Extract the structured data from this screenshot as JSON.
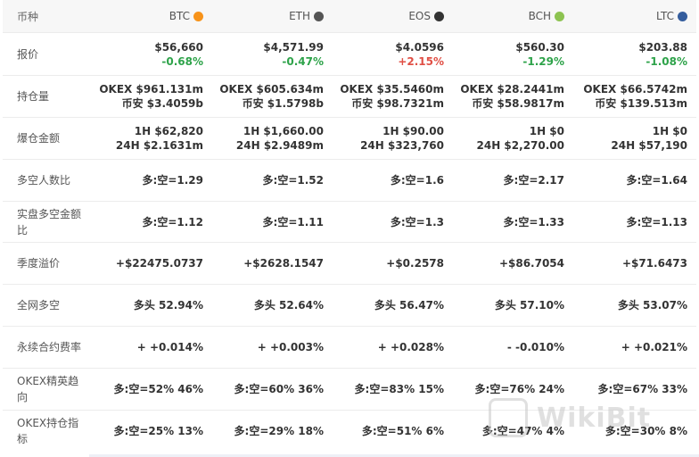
{
  "header": {
    "label": "币种",
    "coins": [
      {
        "name": "BTC",
        "icon": "bitcoin-icon",
        "color": "#f7931a"
      },
      {
        "name": "ETH",
        "icon": "ethereum-icon",
        "color": "#555555"
      },
      {
        "name": "EOS",
        "icon": "eos-icon",
        "color": "#333333"
      },
      {
        "name": "BCH",
        "icon": "bitcoin-cash-icon",
        "color": "#8dc351"
      },
      {
        "name": "LTC",
        "icon": "litecoin-icon",
        "color": "#345d9d"
      }
    ]
  },
  "rows": {
    "price": {
      "label": "报价",
      "cells": [
        {
          "price": "$56,660",
          "change": "-0.68%"
        },
        {
          "price": "$4,571.99",
          "change": "-0.47%"
        },
        {
          "price": "$4.0596",
          "change": "+2.15%"
        },
        {
          "price": "$560.30",
          "change": "-1.29%"
        },
        {
          "price": "$203.88",
          "change": "-1.08%"
        }
      ]
    },
    "holdings": {
      "label": "持仓量",
      "cells": [
        {
          "line1": "OKEX  $961.131m",
          "line2": "币安  $3.4059b"
        },
        {
          "line1": "OKEX  $605.634m",
          "line2": "币安  $1.5798b"
        },
        {
          "line1": "OKEX  $35.5460m",
          "line2": "币安  $98.7321m"
        },
        {
          "line1": "OKEX  $28.2441m",
          "line2": "币安  $58.9817m"
        },
        {
          "line1": "OKEX  $66.5742m",
          "line2": "币安  $139.513m"
        }
      ]
    },
    "liquidation": {
      "label": "爆仓金额",
      "cells": [
        {
          "line1": "1H  $62,820",
          "line2": "24H  $2.1631m"
        },
        {
          "line1": "1H  $1,660.00",
          "line2": "24H  $2.9489m"
        },
        {
          "line1": "1H  $90.00",
          "line2": "24H  $323,760"
        },
        {
          "line1": "1H  $0",
          "line2": "24H  $2,270.00"
        },
        {
          "line1": "1H  $0",
          "line2": "24H  $57,190"
        }
      ]
    },
    "long_short_people": {
      "label": "多空人数比",
      "cells": [
        "多:空=1.29",
        "多:空=1.52",
        "多:空=1.6",
        "多:空=2.17",
        "多:空=1.64"
      ]
    },
    "long_short_amount": {
      "label": "实盘多空金额比",
      "cells": [
        "多:空=1.12",
        "多:空=1.11",
        "多:空=1.3",
        "多:空=1.33",
        "多:空=1.13"
      ]
    },
    "quarterly_premium": {
      "label": "季度溢价",
      "cells": [
        "+$22475.0737",
        "+$2628.1547",
        "+$0.2578",
        "+$86.7054",
        "+$71.6473"
      ]
    },
    "network_long_short": {
      "label": "全网多空",
      "cells": [
        "多头  52.94%",
        "多头  52.64%",
        "多头  56.47%",
        "多头  57.10%",
        "多头  53.07%"
      ]
    },
    "funding_rate": {
      "label": "永续合约费率",
      "cells": [
        "+ +0.014%",
        "+ +0.003%",
        "+ +0.028%",
        "- -0.010%",
        "+ +0.021%"
      ]
    },
    "okex_elite": {
      "label": "OKEX精英趋向",
      "cells": [
        "多:空=52%  46%",
        "多:空=60%  36%",
        "多:空=83%  15%",
        "多:空=76%  24%",
        "多:空=67%  33%"
      ]
    },
    "okex_position": {
      "label": "OKEX持仓指标",
      "cells": [
        "多:空=25%  13%",
        "多:空=29%  18%",
        "多:空=51%  6%",
        "多:空=47%  4%",
        "多:空=30%  8%"
      ]
    }
  },
  "watermark": {
    "text": "WikiBit"
  },
  "colors": {
    "up": "#e04f45",
    "down": "#2ea34a",
    "header_bg": "#f7f7f7"
  }
}
